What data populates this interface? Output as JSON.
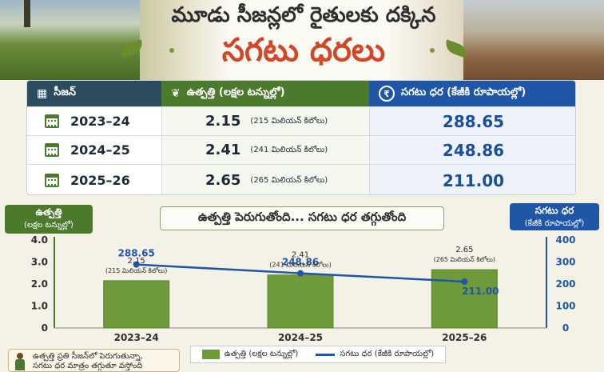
{
  "header": {
    "title_line1": "మూడు సీజన్లలో రైతులకు దక్కిన",
    "title_line2": "సగటు ధరలు"
  },
  "table": {
    "headers": {
      "season": "సీజన్",
      "production": "ఉత్పత్తి (లక్షల టన్నుల్లో)",
      "price": "సగటు ధర (కేజీకి రూపాయల్లో)"
    },
    "rows": [
      {
        "season": "2023–24",
        "production": "2.15",
        "production_note": "(215 మిలియన్ కిలోలు)",
        "price": "288.65"
      },
      {
        "season": "2024–25",
        "production": "2.41",
        "production_note": "(241 మిలియన్ కిలోలు)",
        "price": "248.86"
      },
      {
        "season": "2025–26",
        "production": "2.65",
        "production_note": "(265 మిలియన్ కిలోలు)",
        "price": "211.00"
      }
    ]
  },
  "chart": {
    "subtitle": "ఉత్పత్తి పెరుగుతోంది... సగటు ధర తగ్గుతోంది",
    "left_axis_label": "ఉత్పత్తి",
    "left_axis_unit": "(లక్షల టన్నుల్లో)",
    "right_axis_label": "సగటు ధర",
    "right_axis_unit": "(కేజీకి రూపాయల్లో)",
    "legend_bar": "ఉత్పత్తి (లక్షల టన్నుల్లో)",
    "legend_line": "సగటు ధర (కేజీకి రూపాయల్లో)"
  },
  "note": {
    "line1": "ఉత్పత్తి ప్రతి సీజన్‌లో పెరుగుతున్నా,",
    "line2": "సగటు ధర మాత్రం తగ్గుతూ వస్తోంది"
  },
  "colors": {
    "bar": "#6e9a3a",
    "line": "#1f56a6",
    "title_accent": "#d2462a"
  },
  "chart_data": {
    "type": "bar",
    "categories": [
      "2023–24",
      "2024–25",
      "2025–26"
    ],
    "series": [
      {
        "name": "ఉత్పత్తి (లక్షల టన్నుల్లో)",
        "type": "bar",
        "axis": "left",
        "values": [
          2.15,
          2.41,
          2.65
        ],
        "labels": [
          "2.15",
          "2.41",
          "2.65"
        ],
        "sublabels": [
          "(215 మిలియన్ కిలోలు)",
          "(241 మిలియన్ కిలోలు)",
          "(265 మిలియన్ కిలోలు)"
        ]
      },
      {
        "name": "సగటు ధర (కేజీకి రూపాయల్లో)",
        "type": "line",
        "axis": "right",
        "values": [
          288.65,
          248.86,
          211.0
        ],
        "labels": [
          "288.65",
          "248.86",
          "211.00"
        ]
      }
    ],
    "left_ylim": [
      0,
      4.0
    ],
    "left_ticks": [
      "0",
      "1.0",
      "2.0",
      "3.0",
      "4.0"
    ],
    "right_ylim": [
      0,
      400
    ],
    "right_ticks": [
      "0",
      "100",
      "200",
      "300",
      "400"
    ],
    "grid": false,
    "legend_position": "bottom"
  }
}
